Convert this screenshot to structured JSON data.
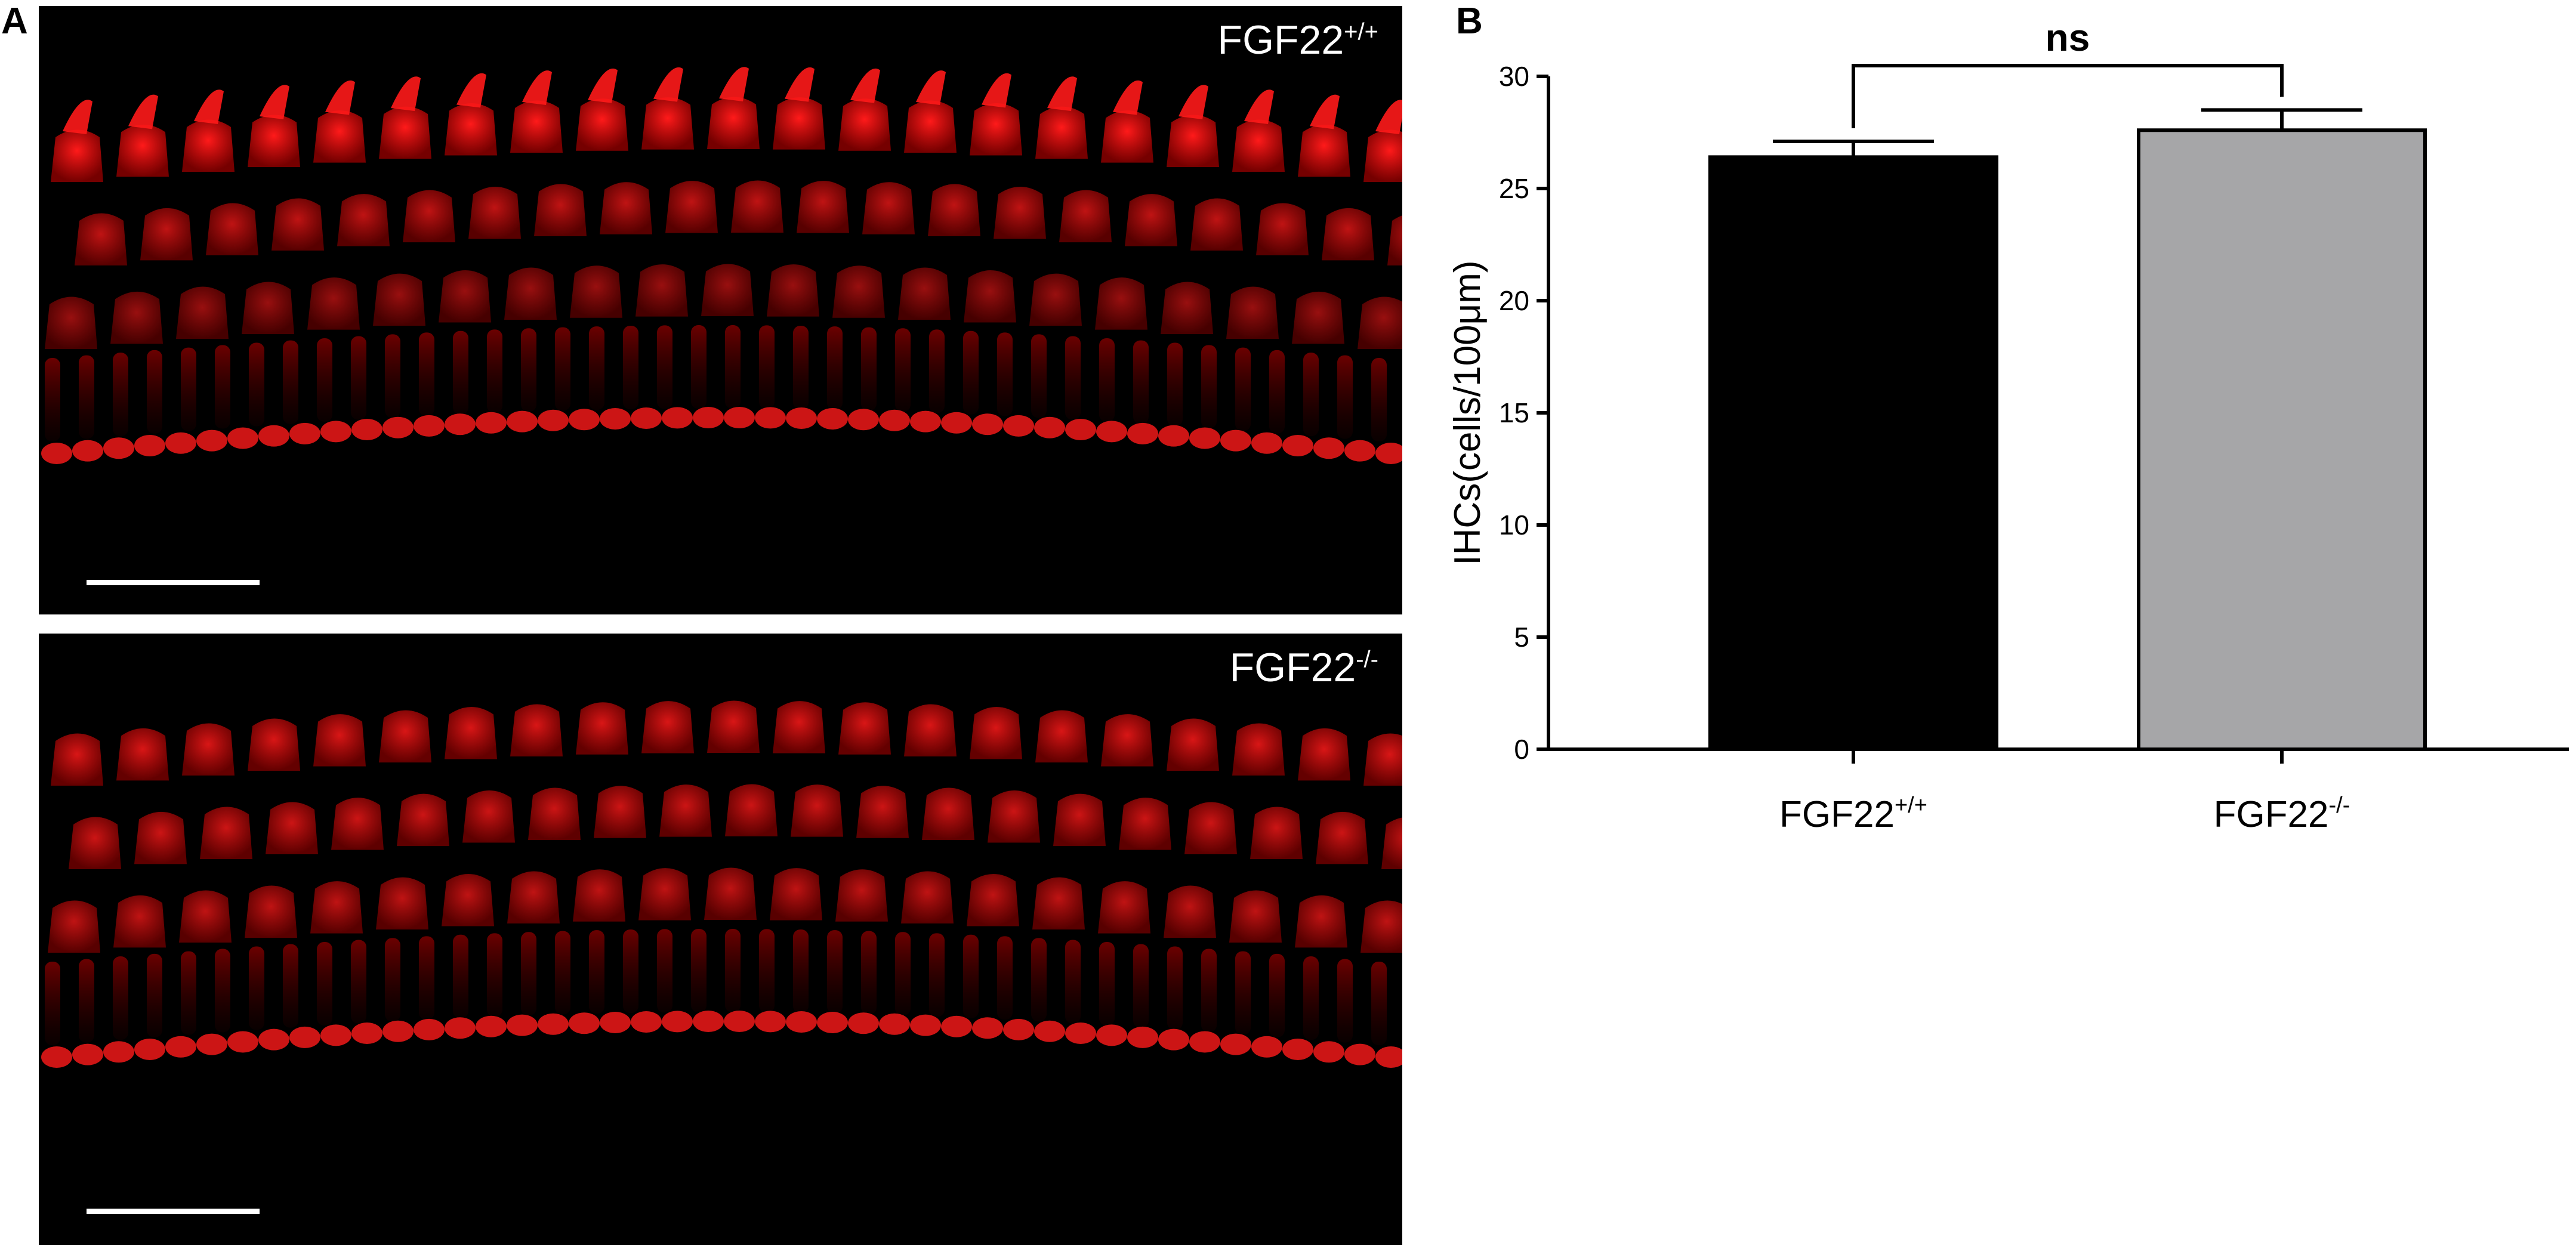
{
  "panels": {
    "a": {
      "letter": "A",
      "top_image": {
        "label_base": "FGF22",
        "label_sup": "+/+"
      },
      "bottom_image": {
        "label_base": "FGF22",
        "label_sup": "-/-"
      }
    },
    "b": {
      "letter": "B"
    }
  },
  "colors": {
    "stain": "#ff1a1a",
    "wt_bar": "#000000",
    "ko_bar": "#a6a6a8",
    "background": "#000000"
  },
  "chart_data": {
    "type": "bar",
    "categories": [
      {
        "base": "FGF22",
        "sup": "+/+"
      },
      {
        "base": "FGF22",
        "sup": "-/-"
      }
    ],
    "values": [
      26.4,
      27.6
    ],
    "errors": [
      0.7,
      0.9
    ],
    "colors": [
      "#000000",
      "#a6a6a8"
    ],
    "ylabel": "IHCs(cells/100μm)",
    "ylim": [
      0,
      30
    ],
    "yticks": [
      0,
      5,
      10,
      15,
      20,
      25,
      30
    ],
    "significance": {
      "label": "ns",
      "between": [
        0,
        1
      ]
    }
  }
}
